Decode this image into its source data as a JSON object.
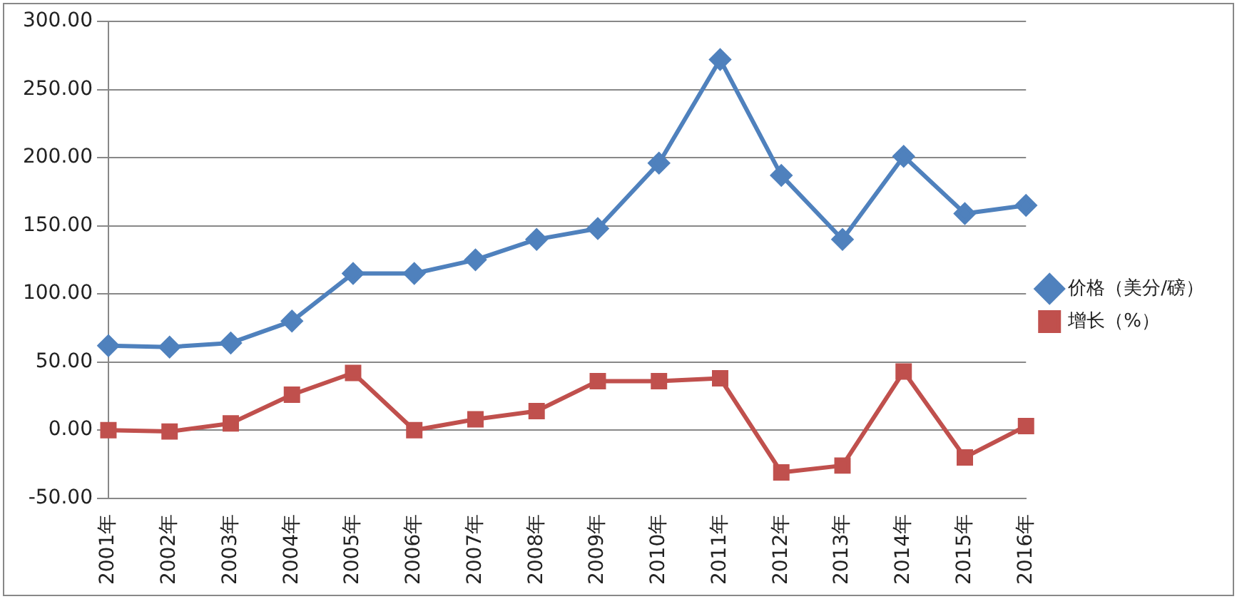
{
  "chart_data": {
    "type": "line",
    "categories": [
      "2001年",
      "2002年",
      "2003年",
      "2004年",
      "2005年",
      "2006年",
      "2007年",
      "2008年",
      "2009年",
      "2010年",
      "2011年",
      "2012年",
      "2013年",
      "2014年",
      "2015年",
      "2016年"
    ],
    "series": [
      {
        "name": "价格（美分/磅）",
        "color": "#4f81bd",
        "marker": "diamond",
        "values": [
          62,
          61,
          64,
          80,
          115,
          115,
          125,
          140,
          148,
          196,
          272,
          187,
          140,
          201,
          159,
          165
        ]
      },
      {
        "name": "增长（%）",
        "color": "#c0504d",
        "marker": "square",
        "values": [
          0,
          -1,
          5,
          26,
          42,
          0,
          8,
          14,
          36,
          36,
          38,
          -31,
          -26,
          43,
          -20,
          3
        ]
      }
    ],
    "ylim": [
      -50,
      300
    ],
    "yticks": [
      {
        "value": -50,
        "label": "-50.00"
      },
      {
        "value": 0,
        "label": "0.00"
      },
      {
        "value": 50,
        "label": "50.00"
      },
      {
        "value": 100,
        "label": "100.00"
      },
      {
        "value": 150,
        "label": "150.00"
      },
      {
        "value": 200,
        "label": "200.00"
      },
      {
        "value": 250,
        "label": "250.00"
      },
      {
        "value": 300,
        "label": "300.00"
      }
    ],
    "grid": "y",
    "legend": "right",
    "line_style": "solid"
  }
}
